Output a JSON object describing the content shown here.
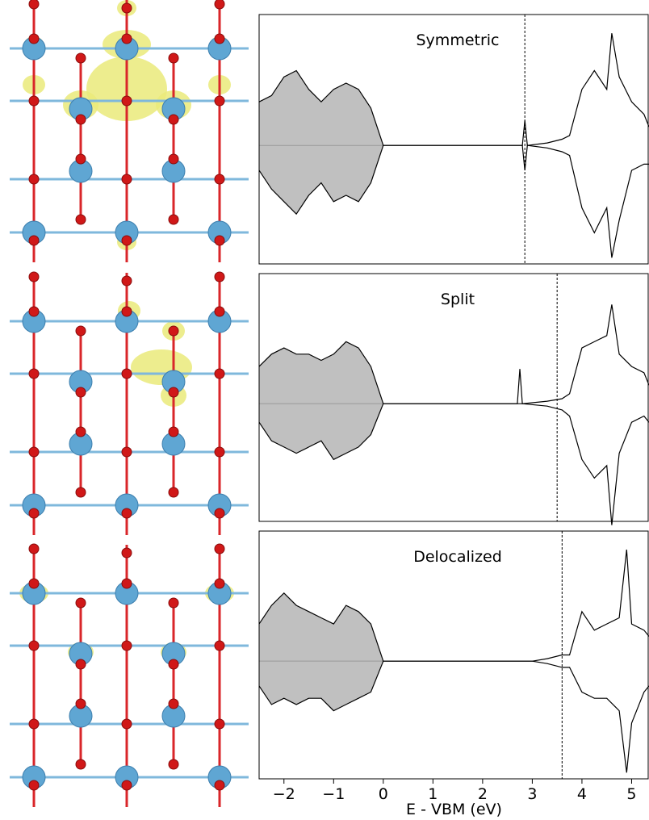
{
  "chart_data": [
    {
      "type": "line",
      "title": "Symmetric",
      "xlim": [
        -2.5,
        5.35
      ],
      "ylim": [
        -0.95,
        1.05
      ],
      "vline": 2.85,
      "fill_color": "#c0c0c0",
      "x": [
        -2.5,
        -2.25,
        -2,
        -1.75,
        -1.5,
        -1.25,
        -1,
        -0.75,
        -0.5,
        -0.25,
        0,
        1,
        2.8,
        2.85,
        2.9,
        3.3,
        3.6,
        3.75,
        4,
        4.25,
        4.5,
        4.6,
        4.75,
        5,
        5.25,
        5.35
      ],
      "series": [
        {
          "color": "#000000",
          "values": [
            0.35,
            0.4,
            0.55,
            0.6,
            0.45,
            0.35,
            0.45,
            0.5,
            0.45,
            0.3,
            0,
            0,
            0,
            0.2,
            0,
            0.02,
            0.05,
            0.08,
            0.45,
            0.6,
            0.45,
            0.9,
            0.55,
            0.35,
            0.25,
            0.15
          ]
        },
        {
          "color": "#000000",
          "values": [
            -0.2,
            -0.35,
            -0.45,
            -0.55,
            -0.4,
            -0.3,
            -0.45,
            -0.4,
            -0.45,
            -0.3,
            0,
            0,
            0,
            -0.2,
            0,
            -0.02,
            -0.05,
            -0.08,
            -0.5,
            -0.7,
            -0.5,
            -0.9,
            -0.6,
            -0.2,
            -0.15,
            -0.15
          ]
        }
      ]
    },
    {
      "type": "line",
      "title": "Split",
      "xlim": [
        -2.5,
        5.35
      ],
      "ylim": [
        -0.95,
        1.05
      ],
      "vline": 3.5,
      "fill_color": "#c0c0c0",
      "x": [
        -2.5,
        -2.25,
        -2,
        -1.75,
        -1.5,
        -1.25,
        -1,
        -0.75,
        -0.5,
        -0.25,
        0,
        1,
        2.7,
        2.75,
        2.8,
        3.3,
        3.6,
        3.75,
        4,
        4.25,
        4.5,
        4.6,
        4.75,
        5,
        5.25,
        5.35
      ],
      "series": [
        {
          "color": "#000000",
          "values": [
            0.3,
            0.4,
            0.45,
            0.4,
            0.4,
            0.35,
            0.4,
            0.5,
            0.45,
            0.3,
            0,
            0,
            0,
            0.28,
            0,
            0.02,
            0.04,
            0.08,
            0.45,
            0.5,
            0.55,
            0.8,
            0.4,
            0.3,
            0.25,
            0.15
          ]
        },
        {
          "color": "#000000",
          "values": [
            -0.15,
            -0.3,
            -0.35,
            -0.4,
            -0.35,
            -0.3,
            -0.45,
            -0.4,
            -0.35,
            -0.25,
            0,
            0,
            0,
            0,
            0,
            -0.02,
            -0.05,
            -0.1,
            -0.45,
            -0.6,
            -0.5,
            -0.98,
            -0.4,
            -0.15,
            -0.1,
            -0.15
          ]
        }
      ]
    },
    {
      "type": "line",
      "title": "Delocalized",
      "xlim": [
        -2.5,
        5.35
      ],
      "ylim": [
        -0.95,
        1.05
      ],
      "vline": 3.6,
      "fill_color": "#c0c0c0",
      "x": [
        -2.5,
        -2.25,
        -2,
        -1.75,
        -1.5,
        -1.25,
        -1,
        -0.75,
        -0.5,
        -0.25,
        0,
        1,
        2,
        3,
        3.3,
        3.6,
        3.75,
        4,
        4.25,
        4.5,
        4.75,
        4.9,
        5,
        5.25,
        5.35
      ],
      "series": [
        {
          "color": "#000000",
          "values": [
            0.3,
            0.45,
            0.55,
            0.45,
            0.4,
            0.35,
            0.3,
            0.45,
            0.4,
            0.3,
            0,
            0,
            0,
            0,
            0.02,
            0.05,
            0.05,
            0.4,
            0.25,
            0.3,
            0.35,
            0.9,
            0.3,
            0.25,
            0.2
          ]
        },
        {
          "color": "#000000",
          "values": [
            -0.2,
            -0.35,
            -0.3,
            -0.35,
            -0.3,
            -0.3,
            -0.4,
            -0.35,
            -0.3,
            -0.25,
            0,
            0,
            0,
            0,
            -0.02,
            -0.05,
            -0.05,
            -0.25,
            -0.3,
            -0.3,
            -0.4,
            -0.9,
            -0.5,
            -0.25,
            -0.2
          ]
        }
      ],
      "xlabel": "E - VBM (eV)",
      "xticks": [
        {
          "value": -2,
          "label": "−2"
        },
        {
          "value": -1,
          "label": "−1"
        },
        0,
        1,
        2,
        3,
        4,
        5
      ]
    }
  ]
}
